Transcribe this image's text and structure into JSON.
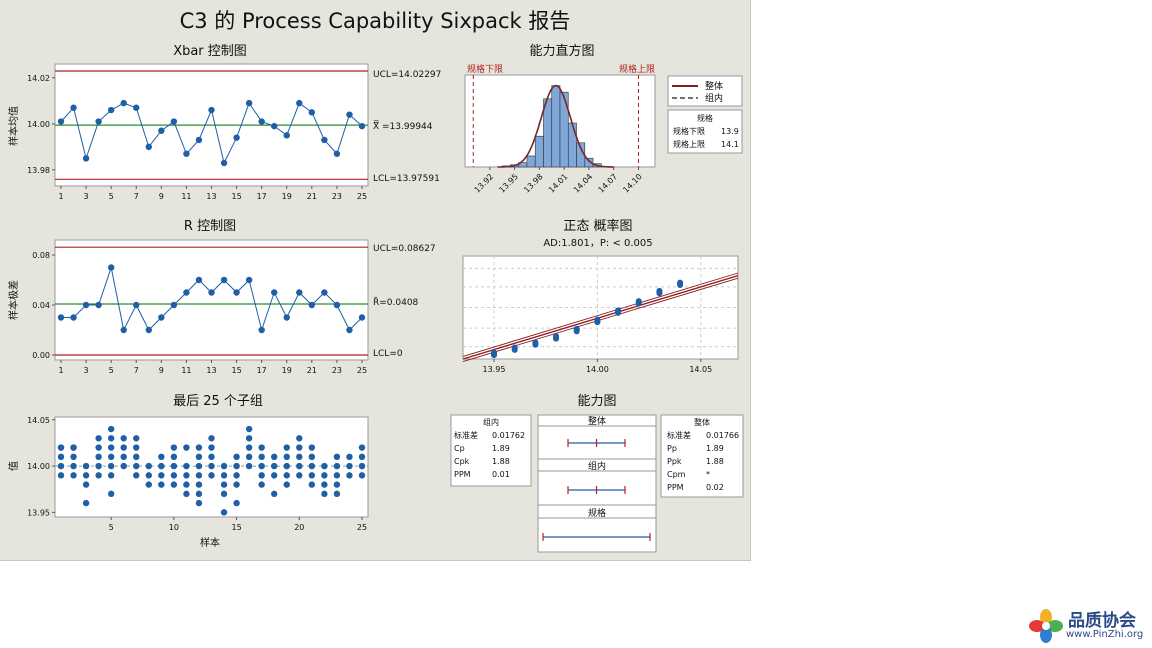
{
  "title": "C3 的 Process Capability Sixpack 报告",
  "chart_data": [
    {
      "type": "line",
      "title": "Xbar 控制图",
      "ylabel": "样本均值",
      "x": [
        1,
        2,
        3,
        4,
        5,
        6,
        7,
        8,
        9,
        10,
        11,
        12,
        13,
        14,
        15,
        16,
        17,
        18,
        19,
        20,
        21,
        22,
        23,
        24,
        25
      ],
      "x_ticks": [
        "1",
        "3",
        "5",
        "7",
        "9",
        "11",
        "13",
        "15",
        "17",
        "19",
        "21",
        "23",
        "25"
      ],
      "y_ticks": [
        "13.98",
        "14.00",
        "14.02"
      ],
      "values": [
        14.001,
        14.007,
        13.985,
        14.001,
        14.006,
        14.009,
        14.007,
        13.99,
        13.997,
        14.001,
        13.987,
        13.993,
        14.006,
        13.983,
        13.994,
        14.009,
        14.001,
        13.999,
        13.995,
        14.009,
        14.005,
        13.993,
        13.987,
        14.004,
        13.999
      ],
      "ylim": [
        13.973,
        14.026
      ],
      "ucl": 14.02297,
      "center": 13.99944,
      "lcl": 13.97591,
      "ucl_label": "UCL=14.02297",
      "center_label": "X̿ =13.99944",
      "lcl_label": "LCL=13.97591"
    },
    {
      "type": "line",
      "title": "R 控制图",
      "ylabel": "样本极差",
      "x": [
        1,
        2,
        3,
        4,
        5,
        6,
        7,
        8,
        9,
        10,
        11,
        12,
        13,
        14,
        15,
        16,
        17,
        18,
        19,
        20,
        21,
        22,
        23,
        24,
        25
      ],
      "x_ticks": [
        "1",
        "3",
        "5",
        "7",
        "9",
        "11",
        "13",
        "15",
        "17",
        "19",
        "21",
        "23",
        "25"
      ],
      "y_ticks": [
        "0.00",
        "0.04",
        "0.08"
      ],
      "values": [
        0.03,
        0.03,
        0.04,
        0.04,
        0.07,
        0.02,
        0.04,
        0.02,
        0.03,
        0.04,
        0.05,
        0.06,
        0.05,
        0.06,
        0.05,
        0.06,
        0.02,
        0.05,
        0.03,
        0.05,
        0.04,
        0.05,
        0.04,
        0.02,
        0.03
      ],
      "ylim": [
        -0.004,
        0.092
      ],
      "ucl": 0.08627,
      "center": 0.0408,
      "lcl": 0,
      "ucl_label": "UCL=0.08627",
      "center_label": "R̄=0.0408",
      "lcl_label": "LCL=0"
    },
    {
      "type": "scatter",
      "title": "最后 25 个子组",
      "xlabel": "样本",
      "ylabel": "值",
      "x_ticks": [
        "5",
        "10",
        "15",
        "20",
        "25"
      ],
      "y_ticks": [
        "13.95",
        "14.00",
        "14.05"
      ],
      "ylim": [
        13.945,
        14.053
      ],
      "center": 14.0,
      "subgroups": [
        [
          13.99,
          14.0,
          14.01,
          14.02,
          14.02
        ],
        [
          13.99,
          14.0,
          14.01,
          14.02,
          14.02
        ],
        [
          13.96,
          13.98,
          13.99,
          14.0
        ],
        [
          13.99,
          14.0,
          14.01,
          14.02,
          14.03
        ],
        [
          13.97,
          13.99,
          14.0,
          14.01,
          14.02,
          14.03,
          14.04
        ],
        [
          14.0,
          14.01,
          14.02,
          14.03
        ],
        [
          13.99,
          14.0,
          14.01,
          14.02,
          14.03
        ],
        [
          13.98,
          13.99,
          14.0
        ],
        [
          13.98,
          13.99,
          14.0,
          14.01
        ],
        [
          13.98,
          13.99,
          14.0,
          14.01,
          14.02
        ],
        [
          13.97,
          13.98,
          13.99,
          14.0,
          14.02
        ],
        [
          13.96,
          13.97,
          13.98,
          13.99,
          14.0,
          14.01,
          14.02
        ],
        [
          13.99,
          14.0,
          14.01,
          14.02,
          14.03
        ],
        [
          13.95,
          13.97,
          13.98,
          13.99,
          14.0
        ],
        [
          13.96,
          13.98,
          13.99,
          14.0,
          14.01
        ],
        [
          14.0,
          14.01,
          14.02,
          14.03,
          14.04
        ],
        [
          13.98,
          13.99,
          14.0,
          14.01,
          14.02
        ],
        [
          13.97,
          13.99,
          14.0,
          14.01
        ],
        [
          13.98,
          13.99,
          14.0,
          14.01,
          14.02
        ],
        [
          13.99,
          14.0,
          14.01,
          14.02,
          14.03
        ],
        [
          13.98,
          13.99,
          14.0,
          14.01,
          14.02
        ],
        [
          13.97,
          13.98,
          13.99,
          14.0
        ],
        [
          13.97,
          13.98,
          13.99,
          14.0,
          14.01
        ],
        [
          13.99,
          14.0,
          14.01
        ],
        [
          13.99,
          14.0,
          14.01,
          14.02
        ]
      ]
    },
    {
      "type": "bar",
      "title": "能力直方图",
      "x_ticks": [
        "13.92",
        "13.95",
        "13.98",
        "14.01",
        "14.04",
        "14.07",
        "14.10"
      ],
      "xlim": [
        13.89,
        14.12
      ],
      "bins": [
        13.94,
        13.95,
        13.96,
        13.97,
        13.98,
        13.99,
        14.0,
        14.01,
        14.02,
        14.03,
        14.04,
        14.05
      ],
      "values": [
        1,
        2,
        4,
        10,
        28,
        62,
        74,
        68,
        40,
        22,
        8,
        3
      ],
      "lsl": 13.9,
      "usl": 14.1,
      "lsl_label": "规格下限",
      "usl_label": "规格上限",
      "legend": [
        {
          "name": "整体",
          "style": "solid"
        },
        {
          "name": "组内",
          "style": "dashed"
        }
      ],
      "spec_table": {
        "title": "规格",
        "rows": [
          [
            "规格下限",
            "13.9"
          ],
          [
            "规格上限",
            "14.1"
          ]
        ]
      },
      "colors": {
        "bars": "#7fa7d9",
        "curve": "#8b1a1a",
        "spec": "#b22222"
      }
    },
    {
      "type": "scatter",
      "title": "正态 概率图",
      "subtitle": "AD:1.801，P: < 0.005",
      "x_ticks": [
        "13.95",
        "14.00",
        "14.05"
      ],
      "xlim": [
        13.935,
        14.068
      ],
      "x": [
        13.95,
        13.96,
        13.97,
        13.98,
        13.99,
        14.0,
        14.01,
        14.02,
        14.03,
        14.04
      ],
      "y": [
        0.05,
        0.1,
        0.15,
        0.21,
        0.28,
        0.37,
        0.46,
        0.55,
        0.65,
        0.73
      ],
      "fit_line": {
        "x": [
          13.935,
          14.068
        ],
        "y": [
          0.0,
          0.81
        ]
      }
    }
  ],
  "capability": {
    "title": "能力图",
    "within": {
      "title": "组内",
      "rows": [
        [
          "标准差",
          "0.01762"
        ],
        [
          "Cp",
          "1.89"
        ],
        [
          "Cpk",
          "1.88"
        ],
        [
          "PPM",
          "0.01"
        ]
      ]
    },
    "overall": {
      "title": "整体",
      "rows": [
        [
          "标准差",
          "0.01766"
        ],
        [
          "Pp",
          "1.89"
        ],
        [
          "Ppk",
          "1.88"
        ],
        [
          "Cpm",
          "*"
        ],
        [
          "PPM",
          "0.02"
        ]
      ]
    },
    "intervals": [
      {
        "label": "整体"
      },
      {
        "label": "组内"
      },
      {
        "label": "规格"
      }
    ]
  },
  "logo": {
    "title": "品质协会",
    "url": "www.PinZhi.org"
  },
  "colors": {
    "data": "#1f5fa8",
    "limit": "#b22222",
    "center": "#2e8b2e",
    "plotbg": "#ffffff",
    "panel": "#e6e5dd"
  }
}
